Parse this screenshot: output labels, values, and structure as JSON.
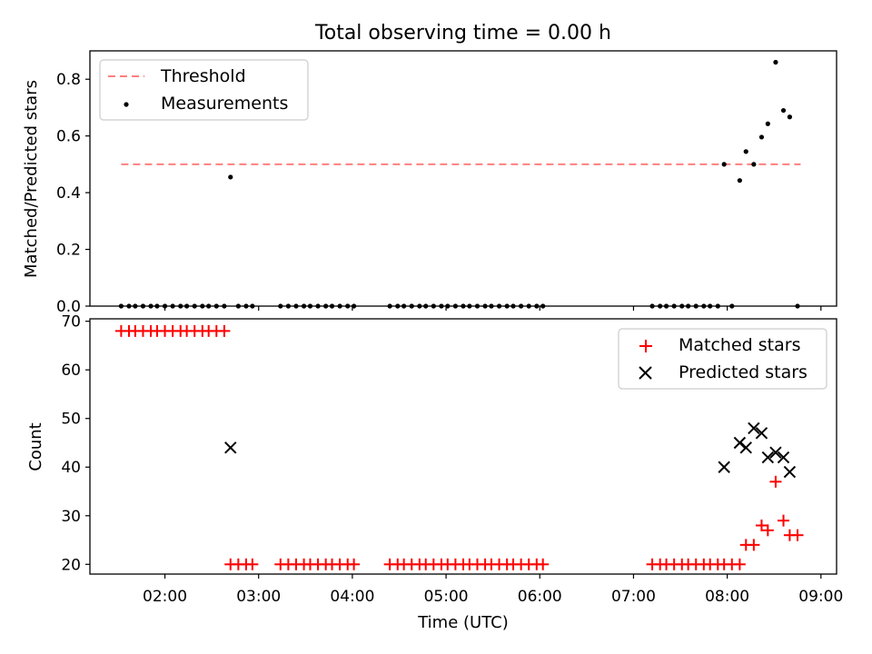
{
  "chart_data": [
    {
      "type": "scatter",
      "title": "Total observing time = 0.00 h",
      "xlabel": "",
      "ylabel": "Matched/Predicted stars",
      "xlim": [
        "01:12",
        "09:10"
      ],
      "ylim": [
        0,
        0.9
      ],
      "yticks": [
        0.0,
        0.2,
        0.4,
        0.6,
        0.8
      ],
      "ytick_labels": [
        "0.0",
        "0.2",
        "0.4",
        "0.6",
        "0.8"
      ],
      "grid": false,
      "legend": "upper-left",
      "colors": {
        "threshold": "#ff7f7f",
        "measurements": "#000000"
      },
      "threshold": {
        "name": "Threshold",
        "x": [
          "01:32",
          "08:47"
        ],
        "y": 0.5
      },
      "series": [
        {
          "name": "Measurements",
          "points": [
            [
              "01:32",
              0
            ],
            [
              "01:37",
              0
            ],
            [
              "01:41",
              0
            ],
            [
              "01:46",
              0
            ],
            [
              "01:51",
              0
            ],
            [
              "01:55",
              0
            ],
            [
              "02:00",
              0
            ],
            [
              "02:05",
              0
            ],
            [
              "02:10",
              0
            ],
            [
              "02:14",
              0
            ],
            [
              "02:19",
              0
            ],
            [
              "02:24",
              0
            ],
            [
              "02:28",
              0
            ],
            [
              "02:33",
              0
            ],
            [
              "02:38",
              0
            ],
            [
              "02:42",
              0.455
            ],
            [
              "02:47",
              0
            ],
            [
              "02:52",
              0
            ],
            [
              "02:56",
              0
            ],
            [
              "03:14",
              0
            ],
            [
              "03:19",
              0
            ],
            [
              "03:24",
              0
            ],
            [
              "03:29",
              0
            ],
            [
              "03:33",
              0
            ],
            [
              "03:38",
              0
            ],
            [
              "03:43",
              0
            ],
            [
              "03:47",
              0
            ],
            [
              "03:52",
              0
            ],
            [
              "03:57",
              0
            ],
            [
              "04:01",
              0
            ],
            [
              "04:24",
              0
            ],
            [
              "04:29",
              0
            ],
            [
              "04:33",
              0
            ],
            [
              "04:38",
              0
            ],
            [
              "04:43",
              0
            ],
            [
              "04:47",
              0
            ],
            [
              "04:52",
              0
            ],
            [
              "04:57",
              0
            ],
            [
              "05:01",
              0
            ],
            [
              "05:06",
              0
            ],
            [
              "05:11",
              0
            ],
            [
              "05:15",
              0
            ],
            [
              "05:20",
              0
            ],
            [
              "05:25",
              0
            ],
            [
              "05:29",
              0
            ],
            [
              "05:34",
              0
            ],
            [
              "05:39",
              0
            ],
            [
              "05:43",
              0
            ],
            [
              "05:48",
              0
            ],
            [
              "05:53",
              0
            ],
            [
              "05:58",
              0
            ],
            [
              "06:02",
              0
            ],
            [
              "07:12",
              0
            ],
            [
              "07:17",
              0
            ],
            [
              "07:21",
              0
            ],
            [
              "07:26",
              0
            ],
            [
              "07:31",
              0
            ],
            [
              "07:35",
              0
            ],
            [
              "07:40",
              0
            ],
            [
              "07:45",
              0
            ],
            [
              "07:49",
              0
            ],
            [
              "07:54",
              0
            ],
            [
              "07:58",
              0.5
            ],
            [
              "08:03",
              0
            ],
            [
              "08:08",
              0.443
            ],
            [
              "08:12",
              0.545
            ],
            [
              "08:17",
              0.5
            ],
            [
              "08:22",
              0.596
            ],
            [
              "08:26",
              0.643
            ],
            [
              "08:31",
              0.86
            ],
            [
              "08:36",
              0.69
            ],
            [
              "08:40",
              0.667
            ],
            [
              "08:45",
              0
            ]
          ]
        }
      ]
    },
    {
      "type": "scatter",
      "title": "",
      "xlabel": "Time (UTC)",
      "ylabel": "Count",
      "xlim": [
        "01:12",
        "09:10"
      ],
      "xticks": [
        "02:00",
        "03:00",
        "04:00",
        "05:00",
        "06:00",
        "07:00",
        "08:00",
        "09:00"
      ],
      "ylim": [
        18,
        70.5
      ],
      "yticks": [
        20,
        30,
        40,
        50,
        60,
        70
      ],
      "grid": false,
      "legend": "upper-right",
      "colors": {
        "matched": "#ff0000",
        "predicted": "#000000"
      },
      "series": [
        {
          "name": "Matched stars",
          "marker": "+",
          "points": [
            [
              "01:32",
              68
            ],
            [
              "01:37",
              68
            ],
            [
              "01:41",
              68
            ],
            [
              "01:46",
              68
            ],
            [
              "01:51",
              68
            ],
            [
              "01:55",
              68
            ],
            [
              "02:00",
              68
            ],
            [
              "02:05",
              68
            ],
            [
              "02:10",
              68
            ],
            [
              "02:14",
              68
            ],
            [
              "02:19",
              68
            ],
            [
              "02:24",
              68
            ],
            [
              "02:28",
              68
            ],
            [
              "02:33",
              68
            ],
            [
              "02:38",
              68
            ],
            [
              "02:42",
              20
            ],
            [
              "02:47",
              20
            ],
            [
              "02:52",
              20
            ],
            [
              "02:56",
              20
            ],
            [
              "03:14",
              20
            ],
            [
              "03:19",
              20
            ],
            [
              "03:24",
              20
            ],
            [
              "03:29",
              20
            ],
            [
              "03:33",
              20
            ],
            [
              "03:38",
              20
            ],
            [
              "03:43",
              20
            ],
            [
              "03:47",
              20
            ],
            [
              "03:52",
              20
            ],
            [
              "03:57",
              20
            ],
            [
              "04:01",
              20
            ],
            [
              "04:24",
              20
            ],
            [
              "04:29",
              20
            ],
            [
              "04:33",
              20
            ],
            [
              "04:38",
              20
            ],
            [
              "04:43",
              20
            ],
            [
              "04:47",
              20
            ],
            [
              "04:52",
              20
            ],
            [
              "04:57",
              20
            ],
            [
              "05:01",
              20
            ],
            [
              "05:06",
              20
            ],
            [
              "05:11",
              20
            ],
            [
              "05:15",
              20
            ],
            [
              "05:20",
              20
            ],
            [
              "05:25",
              20
            ],
            [
              "05:29",
              20
            ],
            [
              "05:34",
              20
            ],
            [
              "05:39",
              20
            ],
            [
              "05:43",
              20
            ],
            [
              "05:48",
              20
            ],
            [
              "05:53",
              20
            ],
            [
              "05:58",
              20
            ],
            [
              "06:02",
              20
            ],
            [
              "07:12",
              20
            ],
            [
              "07:17",
              20
            ],
            [
              "07:21",
              20
            ],
            [
              "07:26",
              20
            ],
            [
              "07:31",
              20
            ],
            [
              "07:35",
              20
            ],
            [
              "07:40",
              20
            ],
            [
              "07:45",
              20
            ],
            [
              "07:49",
              20
            ],
            [
              "07:54",
              20
            ],
            [
              "07:58",
              20
            ],
            [
              "08:03",
              20
            ],
            [
              "08:08",
              20
            ],
            [
              "08:12",
              24
            ],
            [
              "08:17",
              24
            ],
            [
              "08:22",
              28
            ],
            [
              "08:26",
              27
            ],
            [
              "08:31",
              37
            ],
            [
              "08:36",
              29
            ],
            [
              "08:40",
              26
            ],
            [
              "08:45",
              26
            ]
          ]
        },
        {
          "name": "Predicted stars",
          "marker": "x",
          "points": [
            [
              "02:42",
              44
            ],
            [
              "07:58",
              40
            ],
            [
              "08:08",
              45
            ],
            [
              "08:12",
              44
            ],
            [
              "08:17",
              48
            ],
            [
              "08:22",
              47
            ],
            [
              "08:26",
              42
            ],
            [
              "08:31",
              43
            ],
            [
              "08:36",
              42
            ],
            [
              "08:40",
              39
            ]
          ]
        }
      ]
    }
  ]
}
